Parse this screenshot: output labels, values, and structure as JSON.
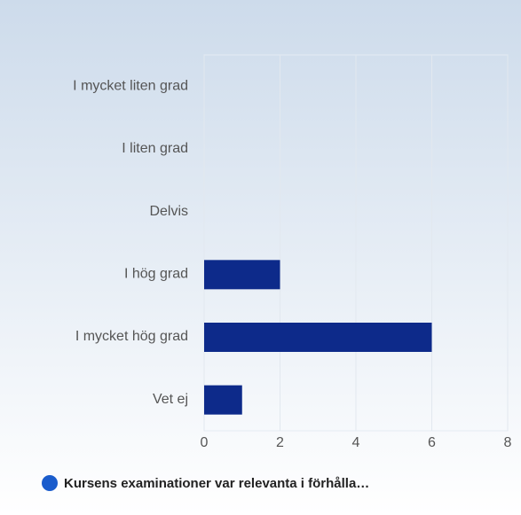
{
  "chart_data": {
    "type": "bar",
    "orientation": "horizontal",
    "categories": [
      "I mycket liten grad",
      "I liten grad",
      "Delvis",
      "I hög grad",
      "I mycket hög grad",
      "Vet ej"
    ],
    "series": [
      {
        "name": "Kursens examinationer var relevanta i förhålla…",
        "color": "#0d2a8a",
        "values": [
          0,
          0,
          0,
          2,
          6,
          1
        ]
      }
    ],
    "xlim": [
      0,
      8
    ],
    "xticks": [
      0,
      2,
      4,
      6,
      8
    ],
    "grid": true,
    "legend": "bottom"
  }
}
